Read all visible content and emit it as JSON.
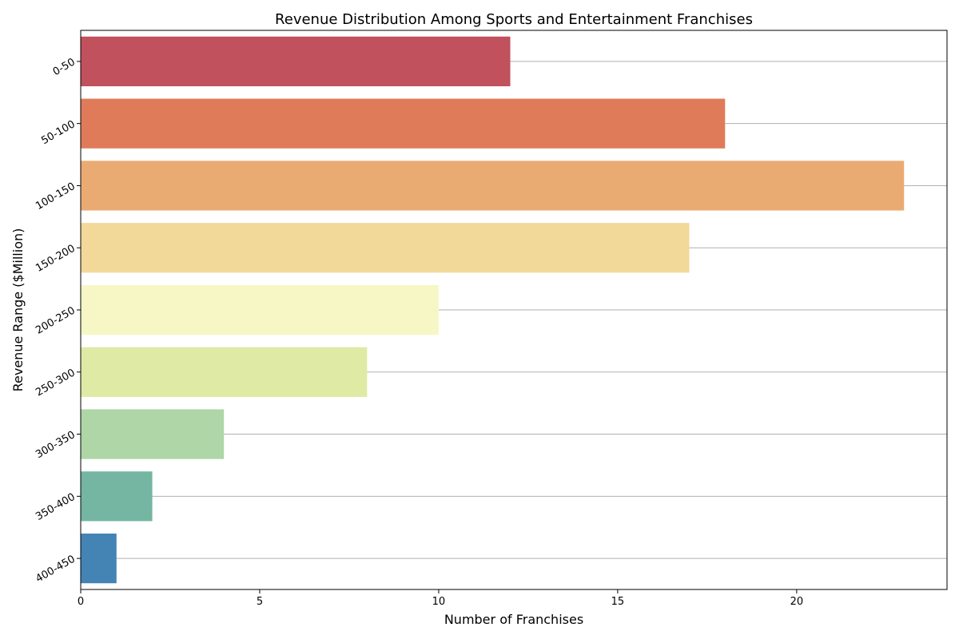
{
  "chart_data": {
    "type": "bar",
    "orientation": "horizontal",
    "title": "Revenue Distribution Among Sports and Entertainment Franchises",
    "xlabel": "Number of Franchises",
    "ylabel": "Revenue Range ($Million)",
    "categories": [
      "0-50",
      "50-100",
      "100-150",
      "150-200",
      "200-250",
      "250-300",
      "300-350",
      "350-400",
      "400-450"
    ],
    "values": [
      12,
      18,
      23,
      17,
      10,
      8,
      4,
      2,
      1
    ],
    "colors": [
      "#c0515d",
      "#e07b5a",
      "#eaab73",
      "#f2d899",
      "#f7f7c6",
      "#dfeaa4",
      "#aed6a7",
      "#74b6a2",
      "#4384b5"
    ],
    "xlim": [
      0,
      24.2
    ],
    "xticks": [
      0,
      5,
      10,
      15,
      20
    ],
    "grid": "horizontal lines at category centers",
    "legend": "none"
  }
}
